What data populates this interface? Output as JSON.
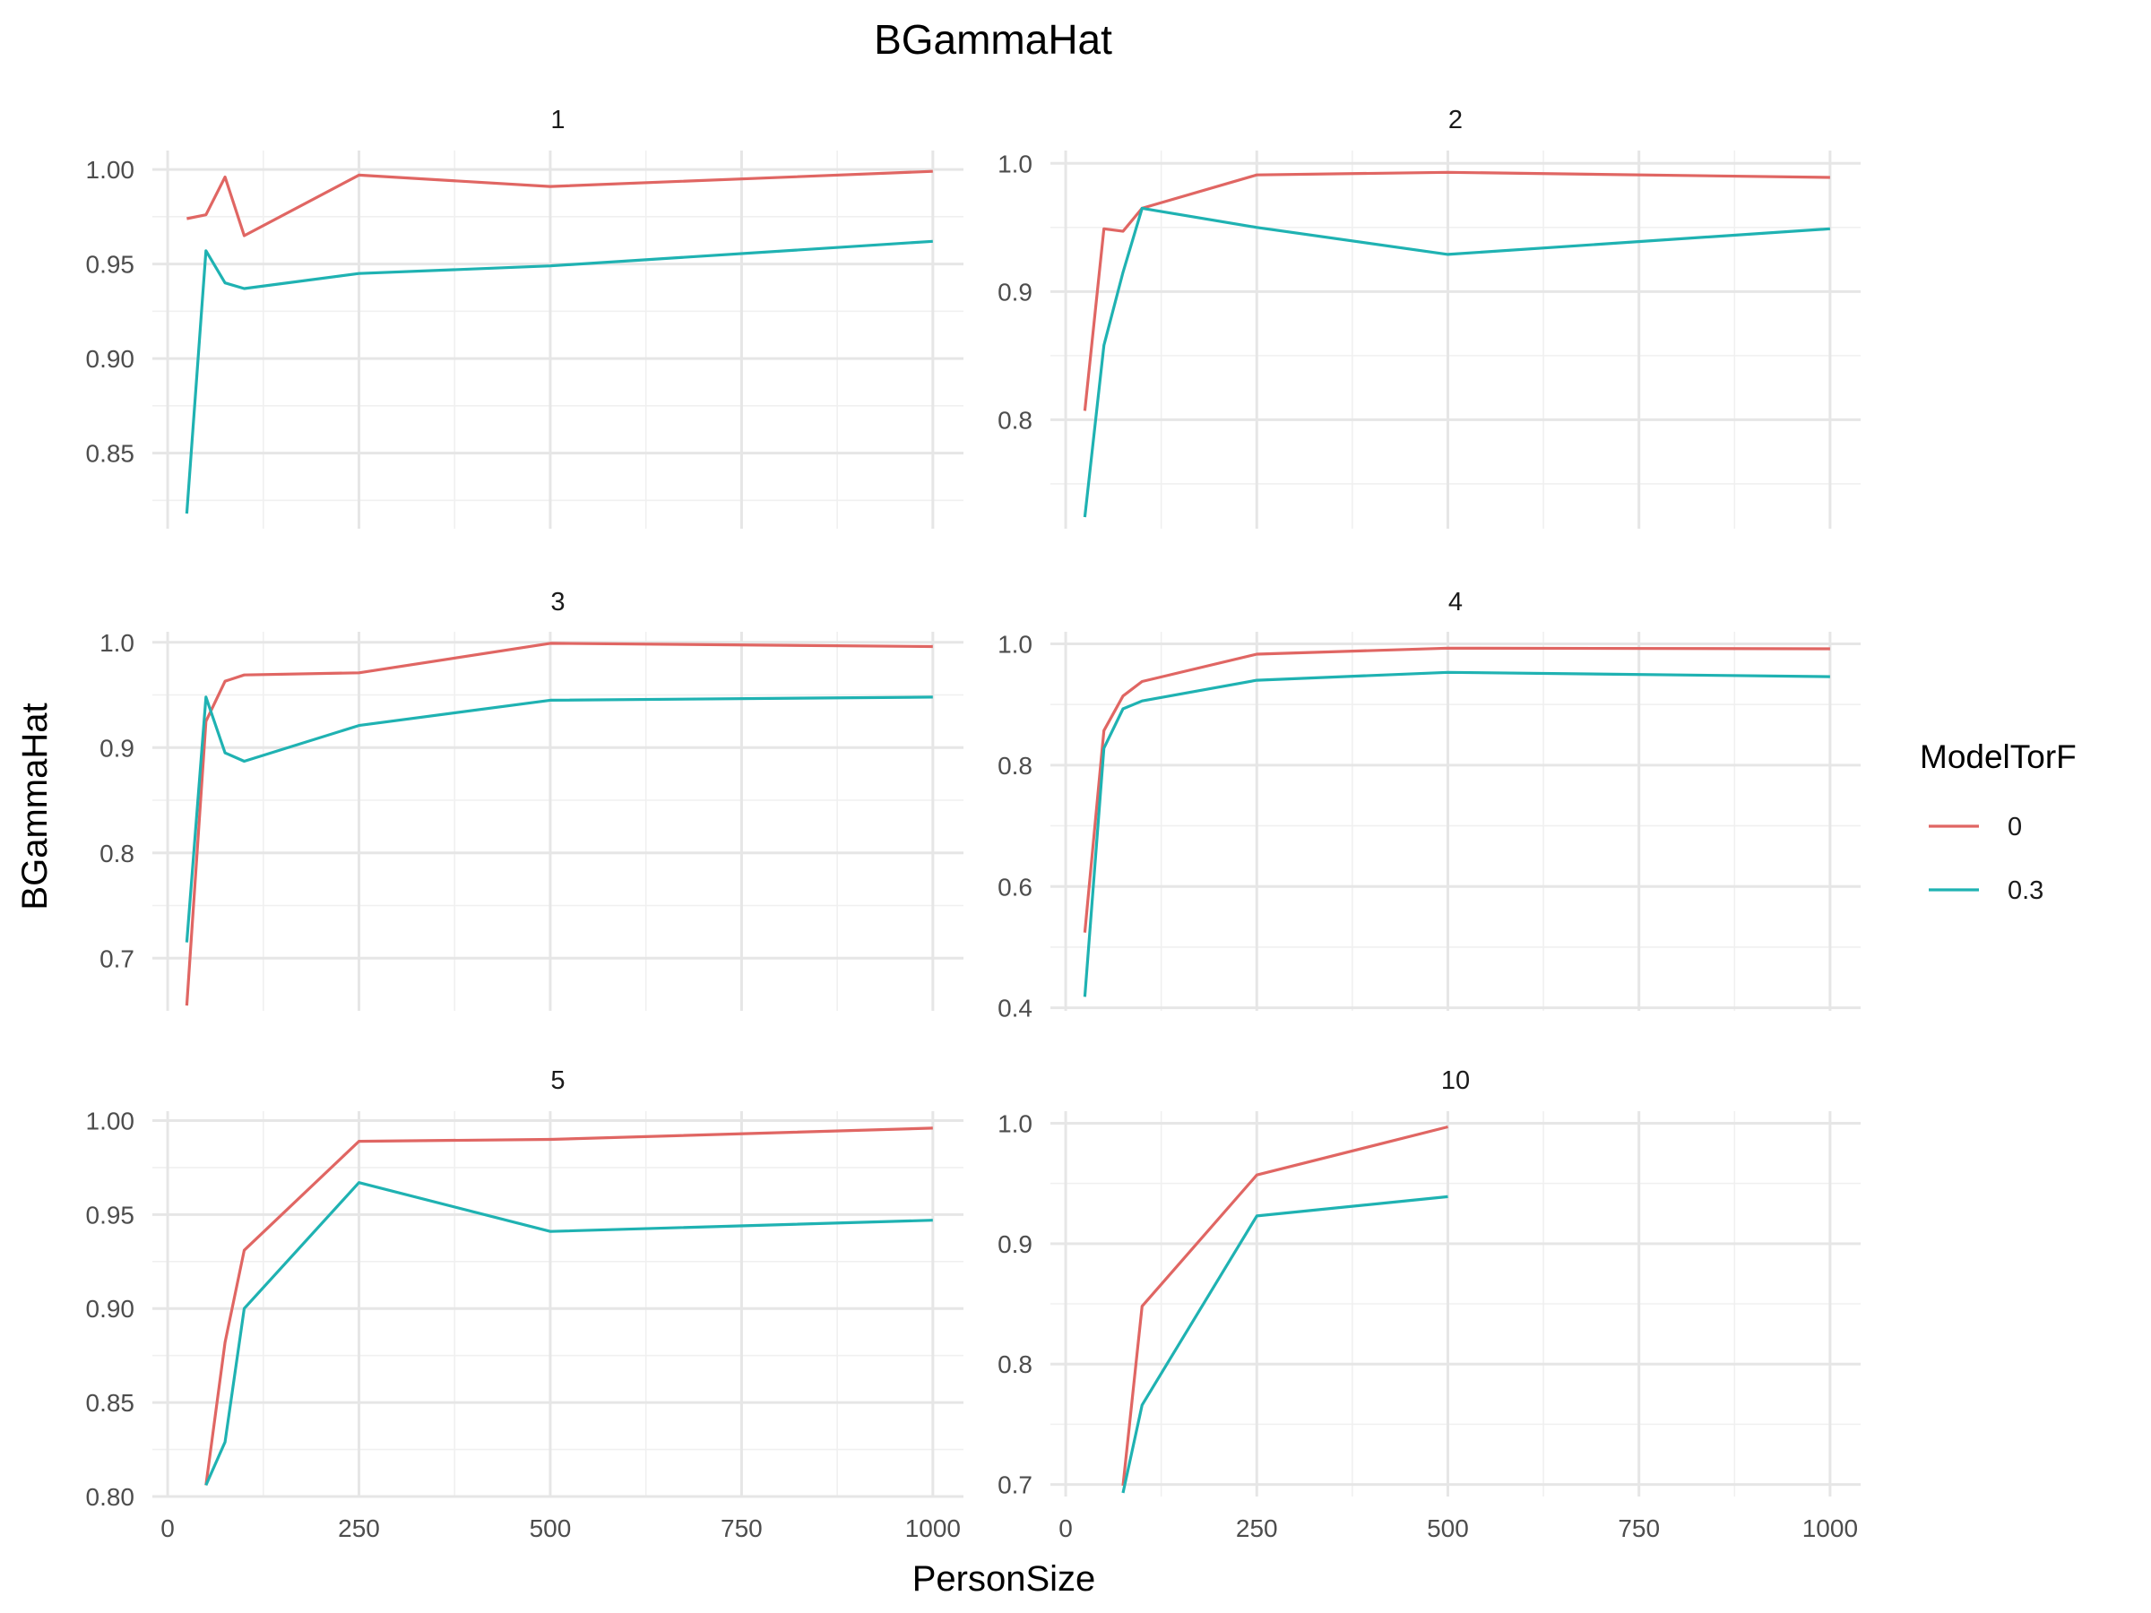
{
  "chart_data": {
    "type": "line",
    "title": "BGammaHat",
    "xlabel": "PersonSize",
    "ylabel": "BGammaHat",
    "x_ticks": [
      0,
      250,
      500,
      750,
      1000
    ],
    "xlim": [
      -20,
      1040
    ],
    "legend": {
      "title": "ModelTorF",
      "position": "right",
      "entries": [
        {
          "label": "0",
          "color": "#E06663"
        },
        {
          "label": "0.3",
          "color": "#1FB2B2"
        }
      ]
    },
    "panels": [
      {
        "label": "1",
        "ylim": [
          0.81,
          1.01
        ],
        "y_ticks": [
          0.85,
          0.9,
          0.95,
          1.0
        ],
        "y_tick_labels": [
          "0.85",
          "0.90",
          "0.95",
          "1.00"
        ],
        "series": [
          {
            "key": "0",
            "x": [
              25,
              50,
              75,
              100,
              250,
              500,
              1000
            ],
            "y": [
              0.974,
              0.976,
              0.996,
              0.965,
              0.997,
              0.991,
              0.999
            ]
          },
          {
            "key": "0.3",
            "x": [
              25,
              50,
              75,
              100,
              250,
              500,
              1000
            ],
            "y": [
              0.818,
              0.957,
              0.94,
              0.937,
              0.945,
              0.949,
              0.962
            ]
          }
        ]
      },
      {
        "label": "2",
        "ylim": [
          0.715,
          1.01
        ],
        "y_ticks": [
          0.8,
          0.9,
          1.0
        ],
        "y_tick_labels": [
          "0.8",
          "0.9",
          "1.0"
        ],
        "series": [
          {
            "key": "0",
            "x": [
              25,
              50,
              75,
              100,
              250,
              500,
              1000
            ],
            "y": [
              0.807,
              0.949,
              0.947,
              0.965,
              0.991,
              0.993,
              0.989
            ]
          },
          {
            "key": "0.3",
            "x": [
              25,
              50,
              75,
              100,
              250,
              500,
              1000
            ],
            "y": [
              0.724,
              0.858,
              0.915,
              0.965,
              0.95,
              0.929,
              0.949
            ]
          }
        ]
      },
      {
        "label": "3",
        "ylim": [
          0.65,
          1.01
        ],
        "y_ticks": [
          0.7,
          0.8,
          0.9,
          1.0
        ],
        "y_tick_labels": [
          "0.7",
          "0.8",
          "0.9",
          "1.0"
        ],
        "series": [
          {
            "key": "0",
            "x": [
              25,
              50,
              75,
              100,
              250,
              500,
              1000
            ],
            "y": [
              0.655,
              0.925,
              0.963,
              0.969,
              0.971,
              0.999,
              0.996
            ]
          },
          {
            "key": "0.3",
            "x": [
              25,
              50,
              75,
              100,
              250,
              500,
              1000
            ],
            "y": [
              0.715,
              0.948,
              0.895,
              0.887,
              0.921,
              0.945,
              0.948
            ]
          }
        ]
      },
      {
        "label": "4",
        "ylim": [
          0.395,
          1.02
        ],
        "y_ticks": [
          0.4,
          0.6,
          0.8,
          1.0
        ],
        "y_tick_labels": [
          "0.4",
          "0.6",
          "0.8",
          "1.0"
        ],
        "series": [
          {
            "key": "0",
            "x": [
              25,
              50,
              75,
              100,
              250,
              500,
              1000
            ],
            "y": [
              0.524,
              0.857,
              0.914,
              0.938,
              0.983,
              0.993,
              0.992
            ]
          },
          {
            "key": "0.3",
            "x": [
              25,
              50,
              75,
              100,
              250,
              500,
              1000
            ],
            "y": [
              0.418,
              0.828,
              0.893,
              0.906,
              0.94,
              0.953,
              0.946
            ]
          }
        ]
      },
      {
        "label": "5",
        "ylim": [
          0.8,
          1.005
        ],
        "y_ticks": [
          0.8,
          0.85,
          0.9,
          0.95,
          1.0
        ],
        "y_tick_labels": [
          "0.80",
          "0.85",
          "0.90",
          "0.95",
          "1.00"
        ],
        "series": [
          {
            "key": "0",
            "x": [
              50,
              75,
              100,
              250,
              500,
              1000
            ],
            "y": [
              0.806,
              0.882,
              0.931,
              0.989,
              0.99,
              0.996
            ]
          },
          {
            "key": "0.3",
            "x": [
              50,
              75,
              100,
              250,
              500,
              1000
            ],
            "y": [
              0.806,
              0.829,
              0.9,
              0.967,
              0.941,
              0.947
            ]
          }
        ]
      },
      {
        "label": "10",
        "ylim": [
          0.69,
          1.01
        ],
        "y_ticks": [
          0.7,
          0.8,
          0.9,
          1.0
        ],
        "y_tick_labels": [
          "0.7",
          "0.8",
          "0.9",
          "1.0"
        ],
        "series": [
          {
            "key": "0",
            "x": [
              75,
              100,
              250,
              500
            ],
            "y": [
              0.699,
              0.848,
              0.957,
              0.997
            ]
          },
          {
            "key": "0.3",
            "x": [
              75,
              100,
              250,
              500
            ],
            "y": [
              0.693,
              0.766,
              0.923,
              0.939
            ]
          }
        ]
      }
    ]
  }
}
